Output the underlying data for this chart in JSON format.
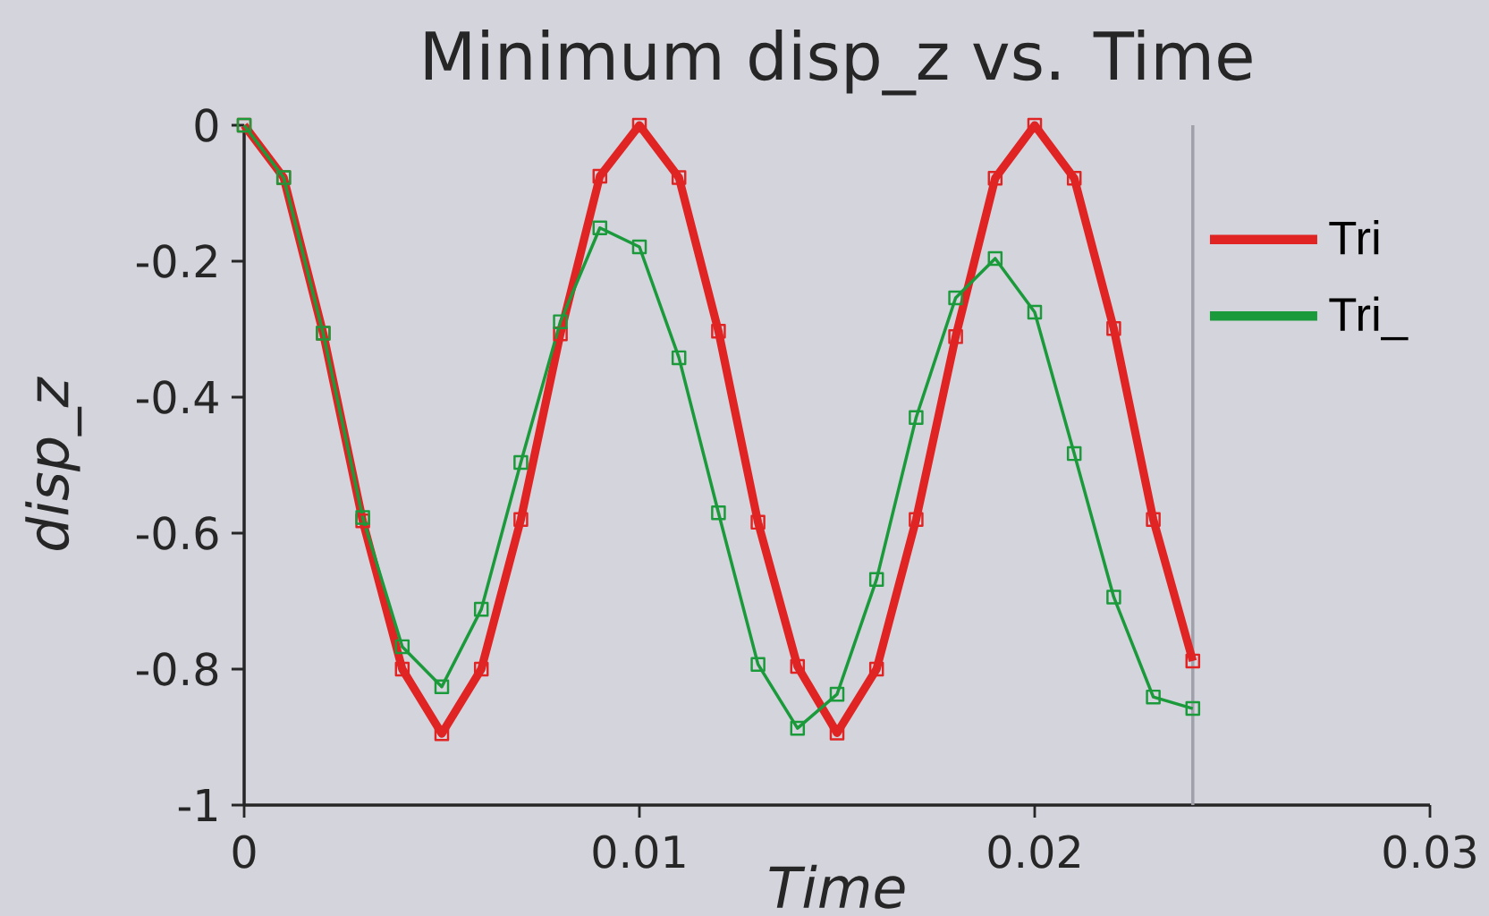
{
  "chart_data": {
    "type": "line",
    "title": "Minimum disp_z vs. Time",
    "xlabel": "Time",
    "ylabel": "disp_z",
    "x": [
      0,
      0.001,
      0.002,
      0.003,
      0.004,
      0.005,
      0.006,
      0.007,
      0.008,
      0.009,
      0.01,
      0.011,
      0.012,
      0.013,
      0.014,
      0.015,
      0.016,
      0.017,
      0.018,
      0.019,
      0.02,
      0.021,
      0.022,
      0.023,
      0.024
    ],
    "series": [
      {
        "name": "Tri",
        "color": "#e02424",
        "values": [
          0,
          -0.077,
          -0.306,
          -0.582,
          -0.8,
          -0.895,
          -0.8,
          -0.58,
          -0.307,
          -0.075,
          0,
          -0.077,
          -0.303,
          -0.584,
          -0.796,
          -0.894,
          -0.8,
          -0.58,
          -0.311,
          -0.078,
          0,
          -0.078,
          -0.299,
          -0.58,
          -0.788
        ]
      },
      {
        "name": "Tri_",
        "color": "#1a9a3a",
        "values": [
          0,
          -0.077,
          -0.306,
          -0.577,
          -0.767,
          -0.826,
          -0.712,
          -0.496,
          -0.289,
          -0.151,
          -0.179,
          -0.342,
          -0.57,
          -0.793,
          -0.887,
          -0.837,
          -0.668,
          -0.43,
          -0.254,
          -0.196,
          -0.275,
          -0.483,
          -0.694,
          -0.841,
          -0.858
        ]
      }
    ],
    "xlim": [
      0,
      0.03
    ],
    "ylim": [
      -1,
      0
    ],
    "xticks": [
      0,
      0.01,
      0.02,
      0.03
    ],
    "yticks": [
      0,
      -0.2,
      -0.4,
      -0.6,
      -0.8,
      -1
    ],
    "ref_lines": [
      {
        "axis": "x",
        "value": 0.024,
        "color": "#a0a0aa"
      }
    ],
    "legend": "top right",
    "marker": "square",
    "grid": false
  }
}
